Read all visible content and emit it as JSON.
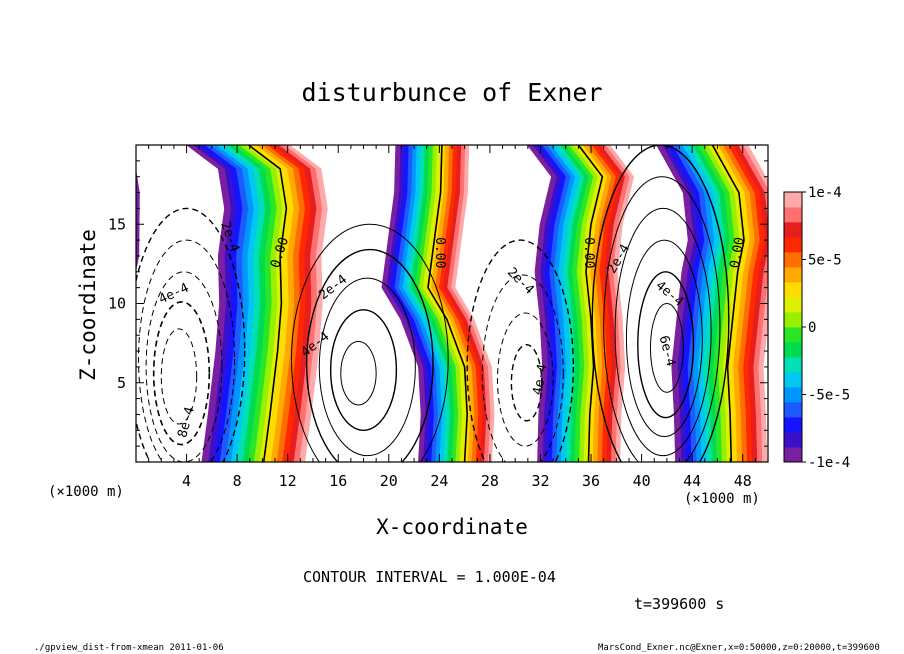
{
  "chart_data": {
    "type": "contour",
    "title": "disturbunce of Exner",
    "xlabel": "X-coordinate",
    "ylabel": "Z-coordinate",
    "x_unit_left": "(×1000 m)",
    "x_unit_right": "(×1000 m)",
    "xlim": [
      0,
      50
    ],
    "ylim": [
      0,
      20
    ],
    "x_ticks": [
      4,
      8,
      12,
      16,
      20,
      24,
      28,
      32,
      36,
      40,
      44,
      48
    ],
    "y_ticks": [
      5,
      10,
      15
    ],
    "contour_interval_text": "CONTOUR INTERVAL = 1.000E-04",
    "time_text": "t=399600 s",
    "colorbar": {
      "min": -0.0001,
      "max": 0.0001,
      "tick_labels": [
        "1e-4",
        "5e-5",
        "0",
        "-5e-5",
        "-1e-4"
      ],
      "tick_values": [
        0.0001,
        5e-05,
        0,
        -5e-05,
        -0.0001
      ],
      "colors": [
        "#7a1fa2",
        "#3a10c8",
        "#1414ff",
        "#1e5aff",
        "#0096ff",
        "#00c8f0",
        "#00e0b4",
        "#00dc50",
        "#28e628",
        "#96f000",
        "#dcf000",
        "#ffdc00",
        "#ffaa00",
        "#ff6e00",
        "#ff2800",
        "#e61e1e",
        "#ff7070",
        "#ffaaaa"
      ]
    },
    "contour_labels": [
      {
        "text": "0.00",
        "x": 11.4,
        "z": 13.2,
        "angle": -72
      },
      {
        "text": "0.00",
        "x": 24.0,
        "z": 13.2,
        "angle": 90
      },
      {
        "text": "0.00",
        "x": 35.8,
        "z": 13.2,
        "angle": 90
      },
      {
        "text": "0.00",
        "x": 47.6,
        "z": 13.2,
        "angle": -80
      },
      {
        "text": "2e-4",
        "x": 7.4,
        "z": 14.2,
        "angle": 70
      },
      {
        "text": "4e-4",
        "x": 3.0,
        "z": 10.6,
        "angle": -25
      },
      {
        "text": "8e-4",
        "x": 4.0,
        "z": 2.5,
        "angle": -75
      },
      {
        "text": "2e-4",
        "x": 15.6,
        "z": 11.0,
        "angle": -38
      },
      {
        "text": "4e-4",
        "x": 14.2,
        "z": 7.4,
        "angle": -38
      },
      {
        "text": "2e-4",
        "x": 30.4,
        "z": 11.4,
        "angle": 45
      },
      {
        "text": "4e-4",
        "x": 32.0,
        "z": 5.2,
        "angle": -80
      },
      {
        "text": "2e-4",
        "x": 38.2,
        "z": 12.8,
        "angle": -60
      },
      {
        "text": "4e-4",
        "x": 42.2,
        "z": 10.6,
        "angle": 40
      },
      {
        "text": "6e-4",
        "x": 42.0,
        "z": 7.0,
        "angle": 75
      }
    ]
  },
  "footer": {
    "left": "./gpview_dist-from-xmean  2011-01-06",
    "right": "MarsCond_Exner.nc@Exner,x=0:50000,z=0:20000,t=399600"
  }
}
